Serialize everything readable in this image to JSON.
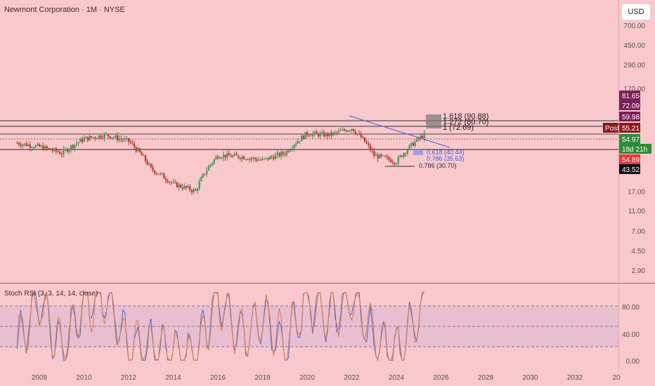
{
  "header": {
    "title": "Newmont Corporation · 1M · NYSE",
    "currency_button": "USD"
  },
  "price_axis": {
    "ticks": [
      "700.00",
      "450.00",
      "290.00",
      "170.00",
      "17.00",
      "11.00",
      "7.00",
      "4.50",
      "2.90"
    ],
    "labels": [
      {
        "text": "81.65",
        "bg": "#7a1f5a",
        "fg": "#ffffff",
        "value": 81.65
      },
      {
        "text": "72.09",
        "bg": "#7a1f5a",
        "fg": "#ffffff",
        "value": 72.09
      },
      {
        "text": "59.98",
        "bg": "#7a1f5a",
        "fg": "#ffffff",
        "value": 59.98
      },
      {
        "text": "55.21",
        "bg": "#8b1a1a",
        "fg": "#ffffff",
        "value": 55.21
      },
      {
        "text": "54.97",
        "bg": "#2e8b3a",
        "fg": "#ffffff",
        "value": 54.97
      },
      {
        "text": "18d 21h",
        "bg": "#2e8b3a",
        "fg": "#ffffff",
        "value": null
      },
      {
        "text": "54.89",
        "bg": "#e03a3a",
        "fg": "#ffffff",
        "value": 54.89
      },
      {
        "text": "43.52",
        "bg": "#111111",
        "fg": "#ffffff",
        "value": 43.52
      }
    ],
    "post_label": "Post"
  },
  "rsi_axis": {
    "ticks": [
      "80.00",
      "40.00",
      "0.00"
    ]
  },
  "time_axis": {
    "ticks": [
      "2008",
      "2010",
      "2012",
      "2014",
      "2016",
      "2018",
      "2020",
      "2022",
      "2024",
      "2026",
      "2028",
      "2030",
      "2032",
      "20"
    ]
  },
  "annotations": {
    "fib_labels": [
      "1.618 (90.88)",
      "1.272 (80.70)",
      "1 (72.69)"
    ],
    "blue_fib_labels": [
      "0.618 (40.44)",
      "0.786 (35.63)"
    ],
    "low_fib_label": "0.786 (30.70)"
  },
  "indicator": {
    "title": "Stoch RSI (3, 3, 14, 14, close)"
  },
  "colors": {
    "background": "#f9c8cc",
    "up": "#3a9a5a",
    "down": "#c0392b",
    "k_line": "#3b6ee0",
    "d_line": "#e07b39",
    "trendline": "#5b6fe0"
  },
  "chart_data": {
    "type": "candlestick",
    "title": "Newmont Corporation · 1M · NYSE",
    "y_scale": "log",
    "x": [
      2007,
      2008,
      2009,
      2010,
      2011,
      2012,
      2013,
      2014,
      2015,
      2016,
      2017,
      2018,
      2019,
      2020,
      2021,
      2022,
      2023,
      2024,
      2025
    ],
    "close": [
      50,
      46,
      40,
      55,
      60,
      52,
      28,
      20,
      17,
      38,
      37,
      34,
      40,
      62,
      60,
      70,
      38,
      33,
      55
    ],
    "high": [
      58,
      55,
      50,
      62,
      70,
      72,
      55,
      30,
      25,
      46,
      40,
      40,
      48,
      72,
      70,
      86,
      50,
      58,
      58
    ],
    "low": [
      40,
      38,
      22,
      40,
      48,
      42,
      23,
      16,
      15,
      17,
      32,
      30,
      33,
      35,
      50,
      40,
      34,
      29,
      42
    ],
    "last_price": 54.97,
    "stoch_rsi": {
      "k": [
        20,
        90,
        10,
        85,
        95,
        15,
        20,
        10,
        5,
        95,
        30,
        70,
        20,
        90,
        60,
        95,
        30,
        10,
        70
      ],
      "d": [
        25,
        85,
        15,
        80,
        90,
        20,
        25,
        12,
        8,
        90,
        35,
        65,
        25,
        85,
        62,
        90,
        35,
        15,
        60
      ]
    }
  }
}
